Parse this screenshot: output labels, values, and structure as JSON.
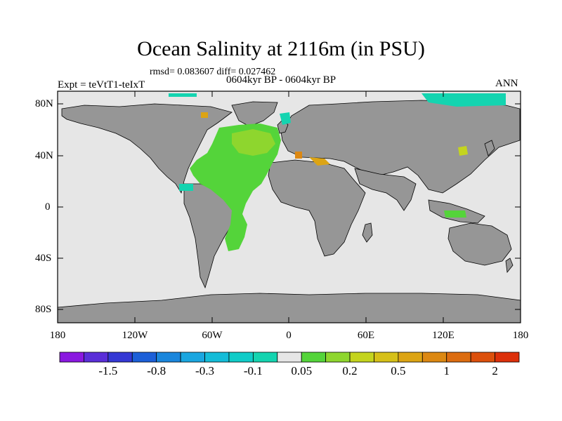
{
  "title": "Ocean Salinity at 2116m (in PSU)",
  "stats": "rmsd= 0.083607 diff= 0.027462",
  "experiment": "Expt = teVtT1-teIxT",
  "period": "0604kyr BP - 0604kyr BP",
  "season": "ANN",
  "axes": {
    "x_ticks": [
      "180",
      "120W",
      "60W",
      "0",
      "60E",
      "120E",
      "180"
    ],
    "y_ticks": [
      "80N",
      "40N",
      "0",
      "40S",
      "80S"
    ]
  },
  "colorbar": {
    "labels": [
      "-1.5",
      "-0.8",
      "-0.3",
      "-0.1",
      "0.05",
      "0.2",
      "0.5",
      "1",
      "2"
    ],
    "colors": [
      "#8a18e0",
      "#5a2ed8",
      "#3438d4",
      "#1c5fd8",
      "#1a86dc",
      "#1aa6e0",
      "#14bcd8",
      "#10ccc8",
      "#14d4b0",
      "#e6e6e6",
      "#54d43a",
      "#8ed62e",
      "#c4d41e",
      "#d6c018",
      "#dca414",
      "#dc8812",
      "#dc6c10",
      "#dc500c",
      "#dc300a"
    ]
  },
  "colors": {
    "land": "#969696",
    "ocean_missing": "#e6e6e6",
    "green": "#54d43a",
    "teal": "#14d4b0",
    "yellowgreen": "#c4d41e",
    "orange": "#dca414"
  }
}
